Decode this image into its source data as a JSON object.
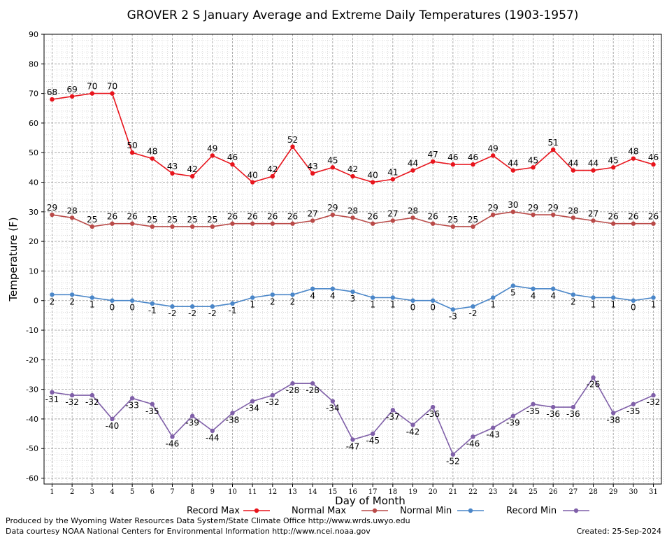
{
  "chart_data": {
    "type": "line",
    "title": "GROVER 2 S January Average and Extreme Daily Temperatures (1903-1957)",
    "xlabel": "Day of Month",
    "ylabel": "Temperature (F)",
    "x": [
      1,
      2,
      3,
      4,
      5,
      6,
      7,
      8,
      9,
      10,
      11,
      12,
      13,
      14,
      15,
      16,
      17,
      18,
      19,
      20,
      21,
      22,
      23,
      24,
      25,
      26,
      27,
      28,
      29,
      30,
      31
    ],
    "xlim": [
      0.6,
      31.4
    ],
    "ylim": [
      -62,
      90
    ],
    "yticks": [
      -60,
      -50,
      -40,
      -30,
      -20,
      -10,
      0,
      10,
      20,
      30,
      40,
      50,
      60,
      70,
      80,
      90
    ],
    "grid": true,
    "legend_position": "bottom",
    "series": [
      {
        "name": "Record Max",
        "color": "#e8141c",
        "label_position": "above",
        "values": [
          68,
          69,
          70,
          70,
          50,
          48,
          43,
          42,
          49,
          46,
          40,
          42,
          52,
          43,
          45,
          42,
          40,
          41,
          44,
          47,
          46,
          46,
          49,
          44,
          45,
          51,
          44,
          44,
          45,
          48,
          46
        ]
      },
      {
        "name": "Normal Max",
        "color": "#b94a48",
        "label_position": "above",
        "values": [
          29,
          28,
          25,
          26,
          26,
          25,
          25,
          25,
          25,
          26,
          26,
          26,
          26,
          27,
          29,
          28,
          26,
          27,
          28,
          26,
          25,
          25,
          29,
          30,
          29,
          29,
          28,
          27,
          26,
          26,
          26
        ]
      },
      {
        "name": "Normal Min",
        "color": "#4a86c8",
        "label_position": "below",
        "values": [
          2,
          2,
          1,
          0,
          0,
          -1,
          -2,
          -2,
          -2,
          -1,
          1,
          2,
          2,
          4,
          4,
          3,
          1,
          1,
          0,
          0,
          -3,
          -2,
          1,
          5,
          4,
          4,
          2,
          1,
          1,
          0,
          1
        ]
      },
      {
        "name": "Record Min",
        "color": "#7f5fa8",
        "label_position": "below",
        "values": [
          -31,
          -32,
          -32,
          -40,
          -33,
          -35,
          -46,
          -39,
          -44,
          -38,
          -34,
          -32,
          -28,
          -28,
          -34,
          -47,
          -45,
          -37,
          -42,
          -36,
          -52,
          -46,
          -43,
          -39,
          -35,
          -36,
          -36,
          -26,
          -38,
          -35,
          -32
        ]
      }
    ]
  },
  "footer": {
    "credit1": "Produced by the Wyoming Water Resources Data System/State Climate Office http://www.wrds.uwyo.edu",
    "credit2": "Data courtesy NOAA National Centers for Environmental Information http://www.ncei.noaa.gov",
    "created": "Created:  25-Sep-2024"
  }
}
